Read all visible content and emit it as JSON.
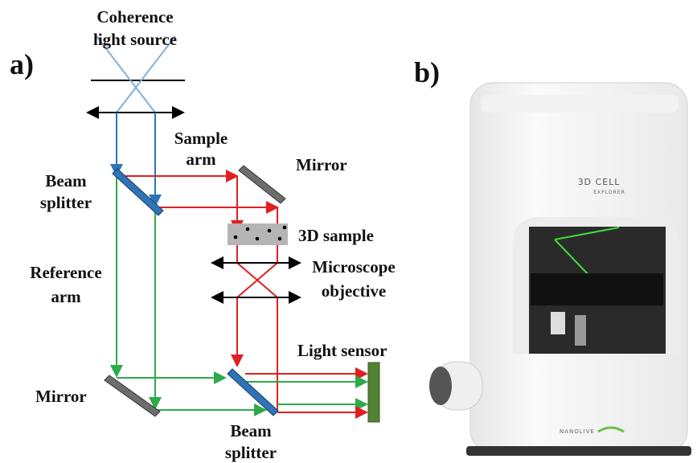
{
  "panel_a": {
    "label": "a)",
    "source": [
      "Coherence",
      "light source"
    ],
    "sample_arm": [
      "Sample",
      "arm"
    ],
    "mirror_top": "Mirror",
    "beam_splitter_top": [
      "Beam",
      "splitter"
    ],
    "sample": "3D sample",
    "reference_arm": [
      "Reference",
      "arm"
    ],
    "objective": [
      "Microscope",
      "objective"
    ],
    "sensor": "Light sensor",
    "mirror_bottom": "Mirror",
    "beam_splitter_bottom": [
      "Beam",
      "splitter"
    ]
  },
  "panel_b": {
    "label": "b)",
    "device_name": [
      "3D CELL",
      "EXPLORER"
    ],
    "brand": "NANOLIVE"
  }
}
